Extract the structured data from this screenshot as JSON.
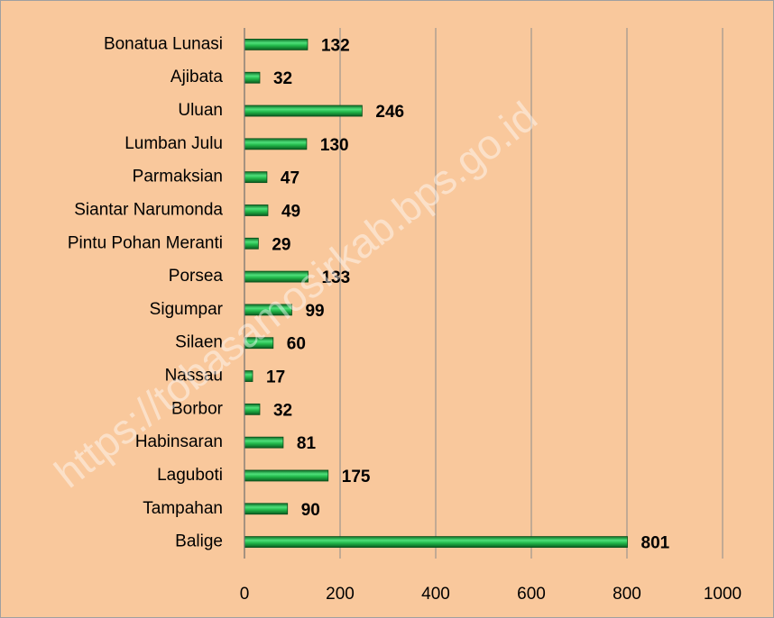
{
  "chart_data": {
    "type": "bar",
    "orientation": "horizontal",
    "categories": [
      "Bonatua Lunasi",
      "Ajibata",
      "Uluan",
      "Lumban Julu",
      "Parmaksian",
      "Siantar Narumonda",
      "Pintu Pohan Meranti",
      "Porsea",
      "Sigumpar",
      "Silaen",
      "Nassau",
      "Borbor",
      "Habinsaran",
      "Laguboti",
      "Tampahan",
      "Balige"
    ],
    "values": [
      132,
      32,
      246,
      130,
      47,
      49,
      29,
      133,
      99,
      60,
      17,
      32,
      81,
      175,
      90,
      801
    ],
    "color": "#22a84a",
    "xlim": [
      0,
      1000
    ],
    "xticks": [
      0,
      200,
      400,
      600,
      800,
      1000
    ],
    "grid": true,
    "watermark": "https://tobasamosirkab.bps.go.id"
  }
}
